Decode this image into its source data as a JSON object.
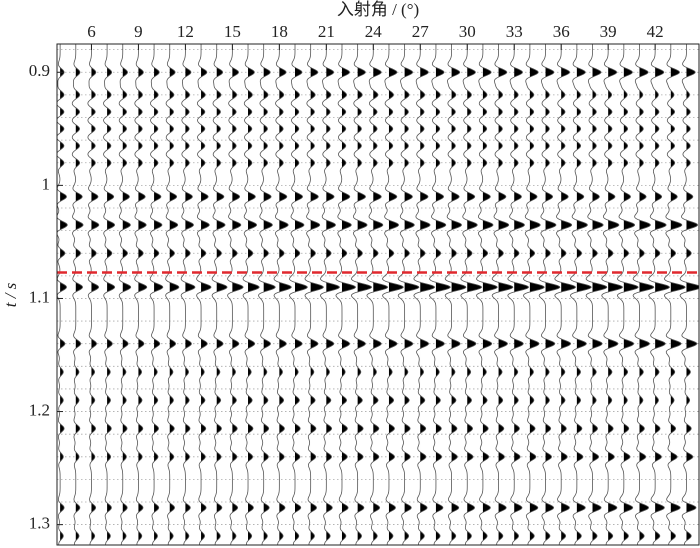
{
  "chart_data": {
    "type": "wiggle",
    "x_label": "入射角 / (°)",
    "y_label": "t / s",
    "xlim": [
      3.8,
      44.8
    ],
    "ylim": [
      0.875,
      1.318
    ],
    "y_inverted": true,
    "xticks": [
      6,
      9,
      12,
      15,
      18,
      21,
      24,
      27,
      30,
      33,
      36,
      39,
      42
    ],
    "yticks": [
      0.9,
      1.0,
      1.1,
      1.2,
      1.3
    ],
    "minor_yticks": [
      0.88,
      0.92,
      0.94,
      0.96,
      0.98,
      1.02,
      1.04,
      1.06,
      1.08,
      1.12,
      1.14,
      1.16,
      1.18,
      1.22,
      1.24,
      1.26,
      1.28,
      1.3
    ],
    "x": [
      4,
      5,
      6,
      7,
      8,
      9,
      10,
      11,
      12,
      13,
      14,
      15,
      16,
      17,
      18,
      19,
      20,
      21,
      22,
      23,
      24,
      25,
      26,
      27,
      28,
      29,
      30,
      31,
      32,
      33,
      34,
      35,
      36,
      37,
      38,
      39,
      40,
      41,
      42,
      43,
      44
    ],
    "amp_x": [
      4,
      24,
      44
    ],
    "events": [
      {
        "t": 0.9,
        "amps": [
          0.5,
          1.0,
          1.1
        ]
      },
      {
        "t": 0.92,
        "amps": [
          0.5,
          0.6,
          0.4
        ]
      },
      {
        "t": 0.935,
        "amps": [
          0.5,
          0.5,
          0.5
        ]
      },
      {
        "t": 0.95,
        "amps": [
          0.5,
          0.5,
          0.5
        ]
      },
      {
        "t": 0.965,
        "amps": [
          0.5,
          0.5,
          0.5
        ]
      },
      {
        "t": 0.98,
        "amps": [
          0.5,
          0.5,
          0.5
        ]
      },
      {
        "t": 1.01,
        "amps": [
          0.8,
          1.0,
          0.8
        ]
      },
      {
        "t": 1.035,
        "amps": [
          0.9,
          1.2,
          1.4
        ]
      },
      {
        "t": 1.06,
        "amps": [
          0.6,
          0.6,
          0.6
        ]
      },
      {
        "t": 1.09,
        "amps": [
          0.8,
          1.8,
          1.8
        ]
      },
      {
        "t": 1.14,
        "amps": [
          0.6,
          1.0,
          1.3
        ]
      },
      {
        "t": 1.165,
        "amps": [
          0.4,
          0.4,
          0.5
        ]
      },
      {
        "t": 1.19,
        "amps": [
          0.4,
          0.6,
          0.4
        ]
      },
      {
        "t": 1.215,
        "amps": [
          0.5,
          0.7,
          0.6
        ]
      },
      {
        "t": 1.24,
        "amps": [
          0.4,
          0.7,
          0.8
        ]
      },
      {
        "t": 1.285,
        "amps": [
          0.5,
          0.8,
          1.2
        ]
      },
      {
        "t": 1.31,
        "amps": [
          0.4,
          0.5,
          0.6
        ]
      }
    ],
    "trace_color": "#000000",
    "hline": 1.077,
    "hline_color": "#e0282e"
  }
}
